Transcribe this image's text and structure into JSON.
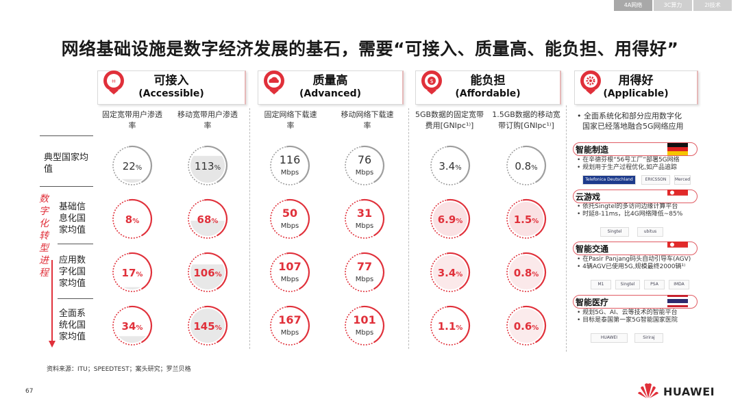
{
  "tabs": [
    "4A网络",
    "3C算力",
    "2I技术"
  ],
  "title": "网络基础设施是数字经济发展的基石，需要“可接入、质量高、能负担、用得好”",
  "categories": [
    {
      "cn": "可接入",
      "en": "(Accessible)"
    },
    {
      "cn": "质量高",
      "en": "(Advanced)"
    },
    {
      "cn": "能负担",
      "en": "(Affordable)"
    },
    {
      "cn": "用得好",
      "en": "(Applicable)"
    }
  ],
  "applicable_summary": [
    "全面系统化和部分应用数字化",
    "国家已经落地融合5G网络应用"
  ],
  "vertical_label": "数字化转型进程",
  "row_labels": [
    [
      "典型国家均",
      "值"
    ],
    [
      "基础信",
      "息化国",
      "家均值"
    ],
    [
      "应用数",
      "字化国",
      "家均值"
    ],
    [
      "全面系",
      "统化国",
      "家均值"
    ]
  ],
  "applications": [
    {
      "title": "智能制造",
      "bullets": [
        "在辛德芬根“56号工厂”部署5G网络",
        "规划用于生产过程优化,如产品追踪"
      ],
      "logos": [
        "Telefonica Deutschland",
        "ERICSSON",
        "Mercedes-Benz"
      ],
      "flag": "germany"
    },
    {
      "title": "云游戏",
      "bullets": [
        "依托Singtel的多访问边缘计算平台",
        "时延8-11ms，比4G网络降低~85%"
      ],
      "logos": [
        "Singtel",
        "ubitus"
      ],
      "flag": "singapore"
    },
    {
      "title": "智能交通",
      "bullets": [
        "在Pasir Panjang码头自动引导车(AGV)",
        "4辆AGV已使用5G,规模最终2000辆¹⁾"
      ],
      "logos": [
        "M1",
        "Singtel",
        "PSA",
        "IMDA"
      ],
      "flag": "singapore"
    },
    {
      "title": "智能医疗",
      "bullets": [
        "规划5G、AI、云等技术的智能平台",
        "目标是泰国第一家5G智能国家医院"
      ],
      "logos": [
        "HUAWEI",
        "Siriraj"
      ],
      "flag": "thailand"
    }
  ],
  "source_note": "资料来源：ITU；SPEEDTEST；案头研究；罗兰贝格",
  "page_number": "67",
  "brand": "HUAWEI",
  "colors": {
    "accent": "#e0303a",
    "ring_grey": "#9e9e9e",
    "fill_grey": "#e6e6e6",
    "fill_red_light": "#f8d7d9"
  },
  "chart_data": {
    "type": "table",
    "columns": [
      "固定宽带用户渗透率",
      "移动宽带用户渗透率",
      "固定网络下载速率",
      "移动网络下载速率",
      "5GB数据的固定宽带费用[GNIpc¹⁾]",
      "1.5GB数据的移动宽带订购[GNIpc¹⁾]"
    ],
    "column_groups": [
      "可接入",
      "可接入",
      "质量高",
      "质量高",
      "能负担",
      "能负担"
    ],
    "units": [
      "%",
      "%",
      "Mbps",
      "Mbps",
      "%",
      "%"
    ],
    "rows": [
      "典型国家均值",
      "基础信息化国家均值",
      "应用数字化国家均值",
      "全面系统化国家均值"
    ],
    "values": [
      [
        22,
        113,
        116,
        76,
        3.4,
        0.8
      ],
      [
        8,
        68,
        50,
        31,
        6.9,
        1.5
      ],
      [
        17,
        106,
        107,
        77,
        3.4,
        0.8
      ],
      [
        34,
        145,
        167,
        101,
        1.1,
        0.6
      ]
    ]
  }
}
